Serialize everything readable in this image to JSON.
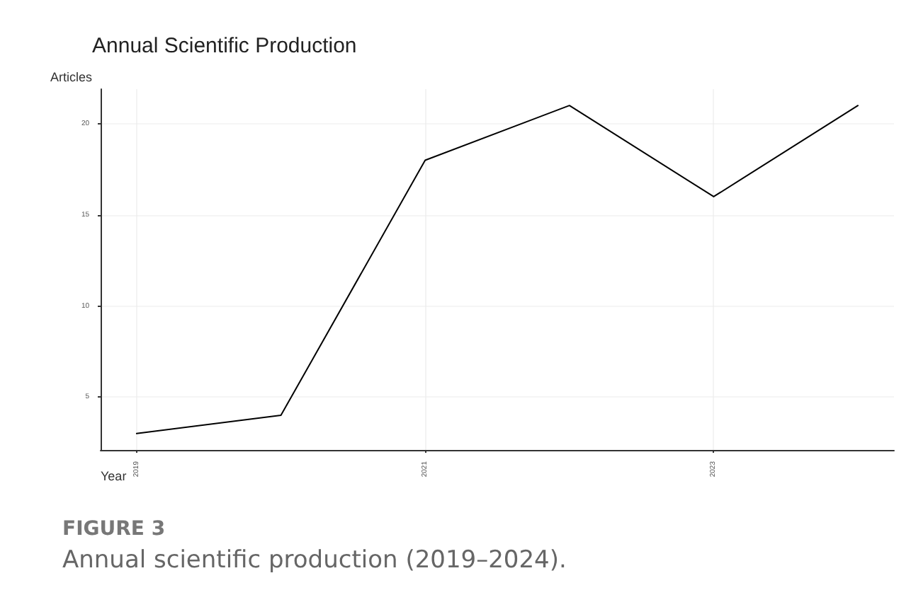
{
  "chart_data": {
    "type": "line",
    "title": "Annual Scientific Production",
    "xlabel": "Year",
    "ylabel": "Articles",
    "x": [
      2019,
      2020,
      2021,
      2022,
      2023,
      2024
    ],
    "series": [
      {
        "color": "#000000",
        "values": [
          3,
          4,
          18,
          21,
          16,
          21
        ]
      }
    ],
    "xlim": [
      2018.75,
      2024.25
    ],
    "xticks": [
      2019,
      2021,
      2023
    ],
    "ylim": [
      2.1,
      21.9
    ],
    "yticks": [
      5,
      10,
      15,
      20
    ],
    "grid": true,
    "marker": "none",
    "line_style": "solid",
    "annotations": [
      "FIGURE 3",
      "Annual scientific production (2019–2024)."
    ]
  }
}
